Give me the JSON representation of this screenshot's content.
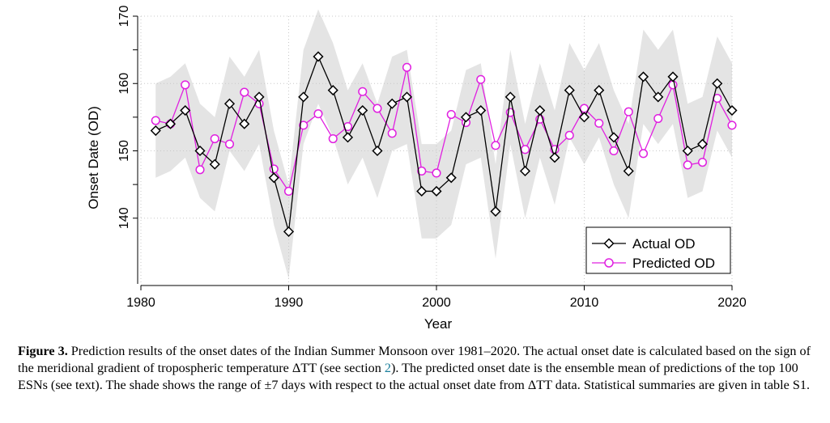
{
  "chart_data": {
    "type": "line",
    "xlabel": "Year",
    "ylabel": "Onset Date (OD)",
    "xlim": [
      1980,
      2020
    ],
    "ylim": [
      130,
      170
    ],
    "xticks": [
      1980,
      1990,
      2000,
      2010,
      2020
    ],
    "yticks": [
      140,
      150,
      160,
      170
    ],
    "grid": true,
    "legend_position": "bottom-right",
    "band": {
      "offset": 7,
      "reference_series": "Actual OD",
      "color": "#e4e4e4"
    },
    "x": [
      1981,
      1982,
      1983,
      1984,
      1985,
      1986,
      1987,
      1988,
      1989,
      1990,
      1991,
      1992,
      1993,
      1994,
      1995,
      1996,
      1997,
      1998,
      1999,
      2000,
      2001,
      2002,
      2003,
      2004,
      2005,
      2006,
      2007,
      2008,
      2009,
      2010,
      2011,
      2012,
      2013,
      2014,
      2015,
      2016,
      2017,
      2018,
      2019,
      2020
    ],
    "series": [
      {
        "name": "Actual OD",
        "color": "#000000",
        "marker": "diamond",
        "values": [
          153,
          154,
          156,
          150,
          148,
          157,
          154,
          158,
          146,
          138,
          158,
          164,
          159,
          152,
          156,
          150,
          157,
          158,
          144,
          144,
          146,
          155,
          156,
          141,
          158,
          147,
          156,
          149,
          159,
          155,
          159,
          152,
          147,
          161,
          158,
          161,
          150,
          151,
          160,
          156
        ]
      },
      {
        "name": "Predicted OD",
        "color": "#e020e0",
        "marker": "circle",
        "values": [
          154.5,
          154,
          159.8,
          147.2,
          151.8,
          151,
          158.7,
          157,
          147.3,
          144,
          153.8,
          155.5,
          151.8,
          153.6,
          158.8,
          156.3,
          152.6,
          162.4,
          147,
          146.7,
          155.4,
          154.2,
          160.6,
          150.8,
          155.7,
          150.2,
          154.7,
          150.2,
          152.3,
          156.3,
          154.1,
          150,
          155.8,
          149.6,
          154.8,
          159.8,
          147.9,
          148.3,
          157.8,
          153.8
        ]
      }
    ]
  },
  "caption": {
    "label": "Figure 3.",
    "text_a": " Prediction results of the onset dates of the Indian Summer Monsoon over 1981–2020. The actual onset date is calculated based on the sign of the meridional gradient of tropospheric temperature ΔTT (see section ",
    "link": "2",
    "text_b": "). The predicted onset date is the ensemble mean of predictions of the top 100 ESNs (see text). The shade shows the range of ±7 days with respect to the actual onset date from ΔTT data. Statistical summaries are given in table S1."
  }
}
